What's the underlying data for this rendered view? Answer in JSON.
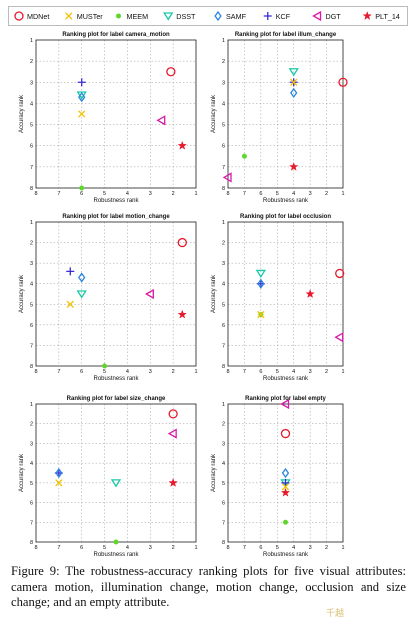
{
  "legend": [
    {
      "name": "MDNet",
      "marker": "circle",
      "color": "#e8192c"
    },
    {
      "name": "MUSTer",
      "marker": "x",
      "color": "#f2c200"
    },
    {
      "name": "MEEM",
      "marker": "dot",
      "color": "#5ed62a"
    },
    {
      "name": "DSST",
      "marker": "triangle-down",
      "color": "#19c9a8"
    },
    {
      "name": "SAMF",
      "marker": "diamond",
      "color": "#2a86e0"
    },
    {
      "name": "KCF",
      "marker": "plus",
      "color": "#3a2bd8"
    },
    {
      "name": "DGT",
      "marker": "triangle-left",
      "color": "#d81aa8"
    },
    {
      "name": "PLT_14",
      "marker": "star",
      "color": "#e8192c"
    }
  ],
  "chart_data": [
    {
      "type": "scatter",
      "title": "Ranking plot for label camera_motion",
      "xlabel": "Robustness rank",
      "ylabel": "Accuracy rank",
      "xlim": [
        8,
        1
      ],
      "ylim": [
        8,
        1
      ],
      "grid": true,
      "points": [
        {
          "series": "MDNet",
          "x": 2.1,
          "y": 2.5
        },
        {
          "series": "KCF",
          "x": 6.0,
          "y": 3.0
        },
        {
          "series": "DSST",
          "x": 6.0,
          "y": 3.6
        },
        {
          "series": "SAMF",
          "x": 6.0,
          "y": 3.7
        },
        {
          "series": "MUSTer",
          "x": 6.0,
          "y": 4.5
        },
        {
          "series": "DGT",
          "x": 2.5,
          "y": 4.8
        },
        {
          "series": "PLT_14",
          "x": 1.6,
          "y": 6.0
        },
        {
          "series": "MEEM",
          "x": 6.0,
          "y": 8.0
        }
      ]
    },
    {
      "type": "scatter",
      "title": "Ranking plot for label illum_change",
      "xlabel": "Robustness rank",
      "ylabel": "Accuracy rank",
      "xlim": [
        8,
        1
      ],
      "ylim": [
        8,
        1
      ],
      "grid": true,
      "points": [
        {
          "series": "DSST",
          "x": 4.0,
          "y": 2.5
        },
        {
          "series": "KCF",
          "x": 4.0,
          "y": 3.0
        },
        {
          "series": "MUSTer",
          "x": 4.0,
          "y": 3.0
        },
        {
          "series": "MDNet",
          "x": 1.0,
          "y": 3.0
        },
        {
          "series": "SAMF",
          "x": 4.0,
          "y": 3.5
        },
        {
          "series": "MEEM",
          "x": 7.0,
          "y": 6.5
        },
        {
          "series": "PLT_14",
          "x": 4.0,
          "y": 7.0
        },
        {
          "series": "DGT",
          "x": 8.0,
          "y": 7.5
        }
      ]
    },
    {
      "type": "scatter",
      "title": "Ranking plot for label motion_change",
      "xlabel": "Robustness rank",
      "ylabel": "Accuracy rank",
      "xlim": [
        8,
        1
      ],
      "ylim": [
        8,
        1
      ],
      "grid": true,
      "points": [
        {
          "series": "MDNet",
          "x": 1.6,
          "y": 2.0
        },
        {
          "series": "KCF",
          "x": 6.5,
          "y": 3.4
        },
        {
          "series": "SAMF",
          "x": 6.0,
          "y": 3.7
        },
        {
          "series": "DSST",
          "x": 6.0,
          "y": 4.5
        },
        {
          "series": "DGT",
          "x": 3.0,
          "y": 4.5
        },
        {
          "series": "MUSTer",
          "x": 6.5,
          "y": 5.0
        },
        {
          "series": "PLT_14",
          "x": 1.6,
          "y": 5.5
        },
        {
          "series": "MEEM",
          "x": 5.0,
          "y": 8.0
        }
      ]
    },
    {
      "type": "scatter",
      "title": "Ranking plot for label occlusion",
      "xlabel": "Robustness rank",
      "ylabel": "Accuracy rank",
      "xlim": [
        8,
        1
      ],
      "ylim": [
        8,
        1
      ],
      "grid": true,
      "points": [
        {
          "series": "DSST",
          "x": 6.0,
          "y": 3.5
        },
        {
          "series": "MDNet",
          "x": 1.2,
          "y": 3.5
        },
        {
          "series": "KCF",
          "x": 6.0,
          "y": 4.0
        },
        {
          "series": "SAMF",
          "x": 6.0,
          "y": 4.0
        },
        {
          "series": "PLT_14",
          "x": 3.0,
          "y": 4.5
        },
        {
          "series": "MEEM",
          "x": 6.0,
          "y": 5.5
        },
        {
          "series": "MUSTer",
          "x": 6.0,
          "y": 5.5
        },
        {
          "series": "DGT",
          "x": 1.2,
          "y": 6.6
        }
      ]
    },
    {
      "type": "scatter",
      "title": "Ranking plot for label size_change",
      "xlabel": "Robustness rank",
      "ylabel": "Accuracy rank",
      "xlim": [
        8,
        1
      ],
      "ylim": [
        8,
        1
      ],
      "grid": true,
      "points": [
        {
          "series": "MDNet",
          "x": 2.0,
          "y": 1.5
        },
        {
          "series": "DGT",
          "x": 2.0,
          "y": 2.5
        },
        {
          "series": "KCF",
          "x": 7.0,
          "y": 4.5
        },
        {
          "series": "SAMF",
          "x": 7.0,
          "y": 4.5
        },
        {
          "series": "MUSTer",
          "x": 7.0,
          "y": 5.0
        },
        {
          "series": "DSST",
          "x": 4.5,
          "y": 5.0
        },
        {
          "series": "PLT_14",
          "x": 2.0,
          "y": 5.0
        },
        {
          "series": "MEEM",
          "x": 4.5,
          "y": 8.0
        }
      ]
    },
    {
      "type": "scatter",
      "title": "Ranking plot for label empty",
      "xlabel": "Robustness rank",
      "ylabel": "Accuracy rank",
      "xlim": [
        8,
        1
      ],
      "ylim": [
        8,
        1
      ],
      "grid": true,
      "points": [
        {
          "series": "DGT",
          "x": 4.5,
          "y": 1.0
        },
        {
          "series": "MDNet",
          "x": 4.5,
          "y": 2.5
        },
        {
          "series": "SAMF",
          "x": 4.5,
          "y": 4.5
        },
        {
          "series": "DSST",
          "x": 4.5,
          "y": 5.0
        },
        {
          "series": "KCF",
          "x": 4.5,
          "y": 5.0
        },
        {
          "series": "MUSTer",
          "x": 4.5,
          "y": 5.2
        },
        {
          "series": "PLT_14",
          "x": 4.5,
          "y": 5.5
        },
        {
          "series": "MEEM",
          "x": 4.5,
          "y": 7.0
        }
      ]
    }
  ],
  "caption": "Figure 9: The robustness-accuracy ranking plots for five visual attributes: camera motion, illumination change, motion change, occlusion and size change; and an empty attribute.",
  "watermark": "千越"
}
